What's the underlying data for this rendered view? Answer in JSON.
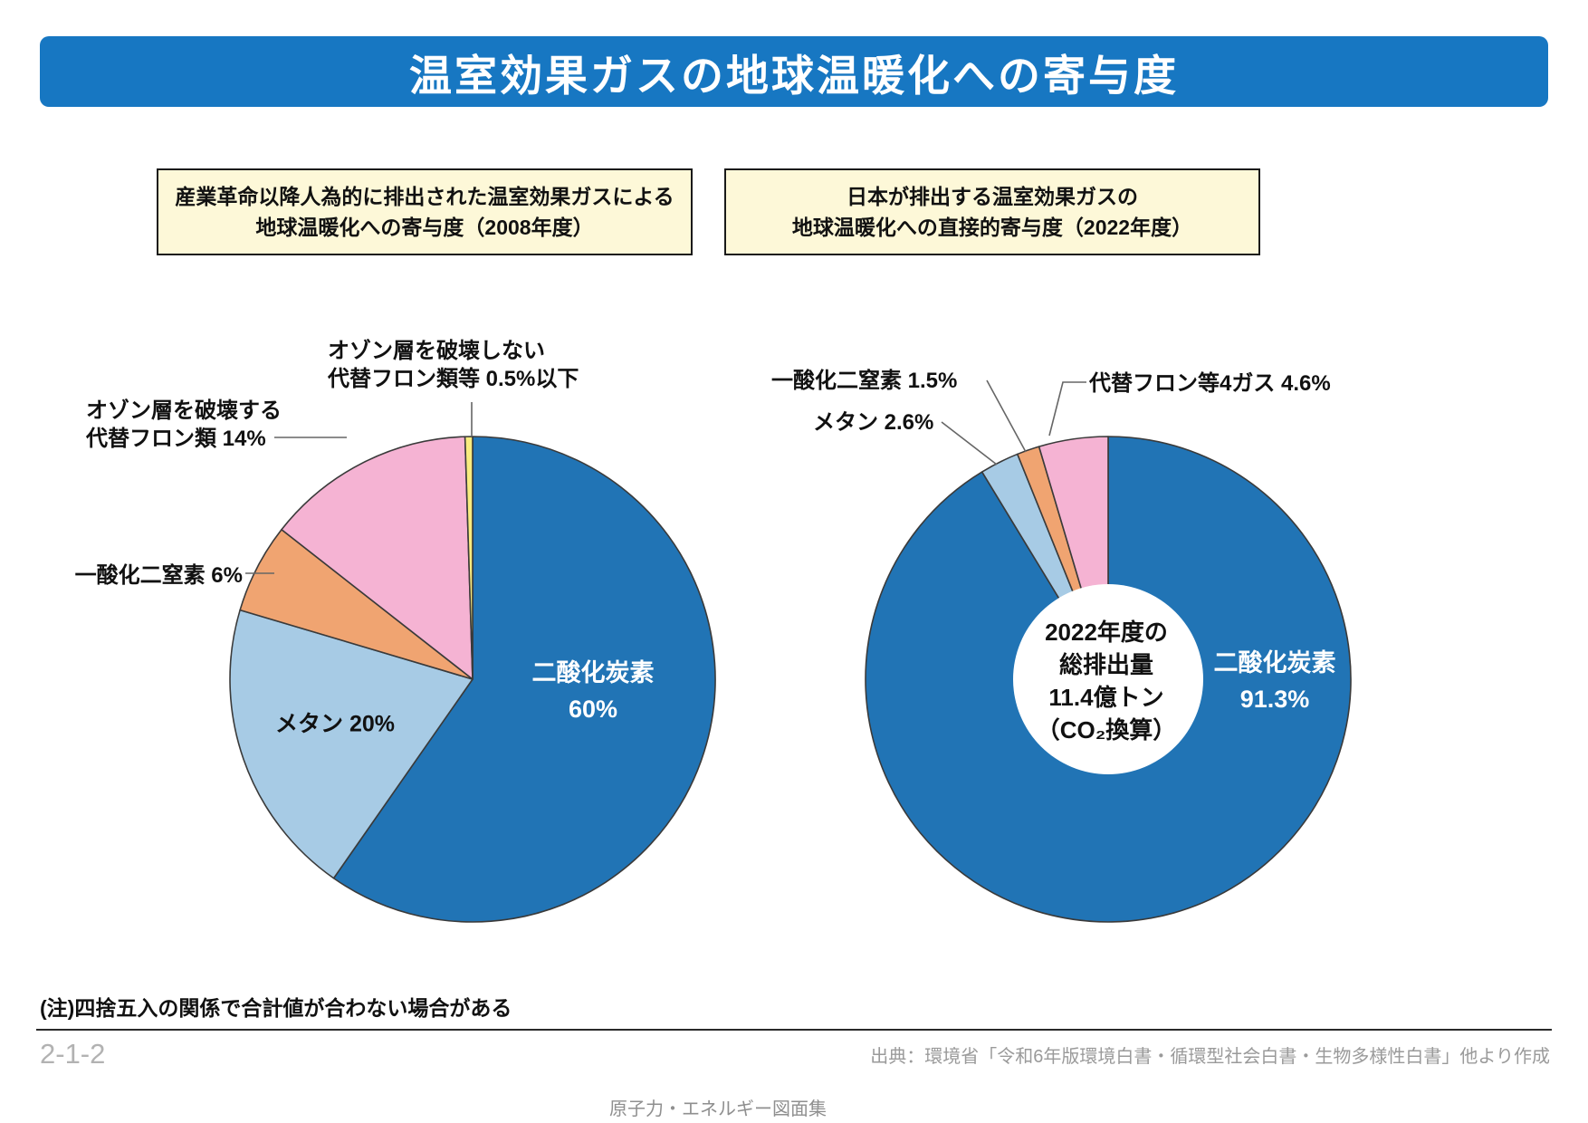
{
  "header": {
    "title": "温室効果ガスの地球温暖化への寄与度"
  },
  "colors": {
    "title_bar_bg": "#1777c2",
    "title_text": "#ffffff",
    "subtitle_box_bg": "#fdf8d8",
    "subtitle_box_border": "#1a1a1a",
    "co2_blue": "#2174b5",
    "methane_light_blue": "#a7cbe5",
    "n2o_orange": "#f0a471",
    "cfc_pink": "#f5b3d3",
    "cfc_yellow": "#f9ec7f",
    "slice_outline": "#3a3a3a",
    "leader_line": "#666666",
    "footer_gray": "#9a9a9a"
  },
  "left_chart": {
    "box_title": [
      "産業革命以降人為的に排出された温室効果ガスによる",
      "地球温暖化への寄与度（2008年度）"
    ],
    "labels": {
      "ozone_safe": [
        "オゾン層を破壊しない",
        "代替フロン類等 0.5%以下"
      ],
      "ozone_depleting": [
        "オゾン層を破壊する",
        "代替フロン類 14%"
      ],
      "n2o": "一酸化二窒素 6%",
      "methane": "メタン 20%",
      "co2": [
        "二酸化炭素",
        "60%"
      ]
    }
  },
  "right_chart": {
    "box_title": [
      "日本が排出する温室効果ガスの",
      "地球温暖化への直接的寄与度（2022年度）"
    ],
    "labels": {
      "n2o": "一酸化二窒素 1.5%",
      "methane": "メタン 2.6%",
      "hfc": "代替フロン等4ガス 4.6%",
      "co2": [
        "二酸化炭素",
        "91.3%"
      ],
      "center": [
        "2022年度の",
        "総排出量",
        "11.4億トン",
        "（CO₂換算）"
      ]
    }
  },
  "chart_data": [
    {
      "type": "pie",
      "title": "産業革命以降人為的に排出された温室効果ガスによる地球温暖化への寄与度（2008年度）",
      "unit": "%",
      "slices": [
        {
          "label": "二酸化炭素",
          "value": 60,
          "color": "#2174b5"
        },
        {
          "label": "メタン",
          "value": 20,
          "color": "#a7cbe5"
        },
        {
          "label": "一酸化二窒素",
          "value": 6,
          "color": "#f0a471"
        },
        {
          "label": "オゾン層を破壊する代替フロン類",
          "value": 14,
          "color": "#f5b3d3"
        },
        {
          "label": "オゾン層を破壊しない代替フロン類等",
          "value": 0.5,
          "color": "#f9ec7f"
        }
      ]
    },
    {
      "type": "donut",
      "title": "日本が排出する温室効果ガスの地球温暖化への直接的寄与度（2022年度）",
      "center_label": "2022年度の総排出量 11.4億トン（CO₂換算）",
      "unit": "%",
      "slices": [
        {
          "label": "二酸化炭素",
          "value": 91.3,
          "color": "#2174b5"
        },
        {
          "label": "メタン",
          "value": 2.6,
          "color": "#a7cbe5"
        },
        {
          "label": "一酸化二窒素",
          "value": 1.5,
          "color": "#f0a471"
        },
        {
          "label": "代替フロン等4ガス",
          "value": 4.6,
          "color": "#f5b3d3"
        }
      ]
    }
  ],
  "footer": {
    "note": "(注)四捨五入の関係で合計値が合わない場合がある",
    "page_number": "2-1-2",
    "source": "出典：環境省「令和6年版環境白書・循環型社会白書・生物多様性白書」他より作成",
    "publication": "原子力・エネルギー図面集"
  }
}
